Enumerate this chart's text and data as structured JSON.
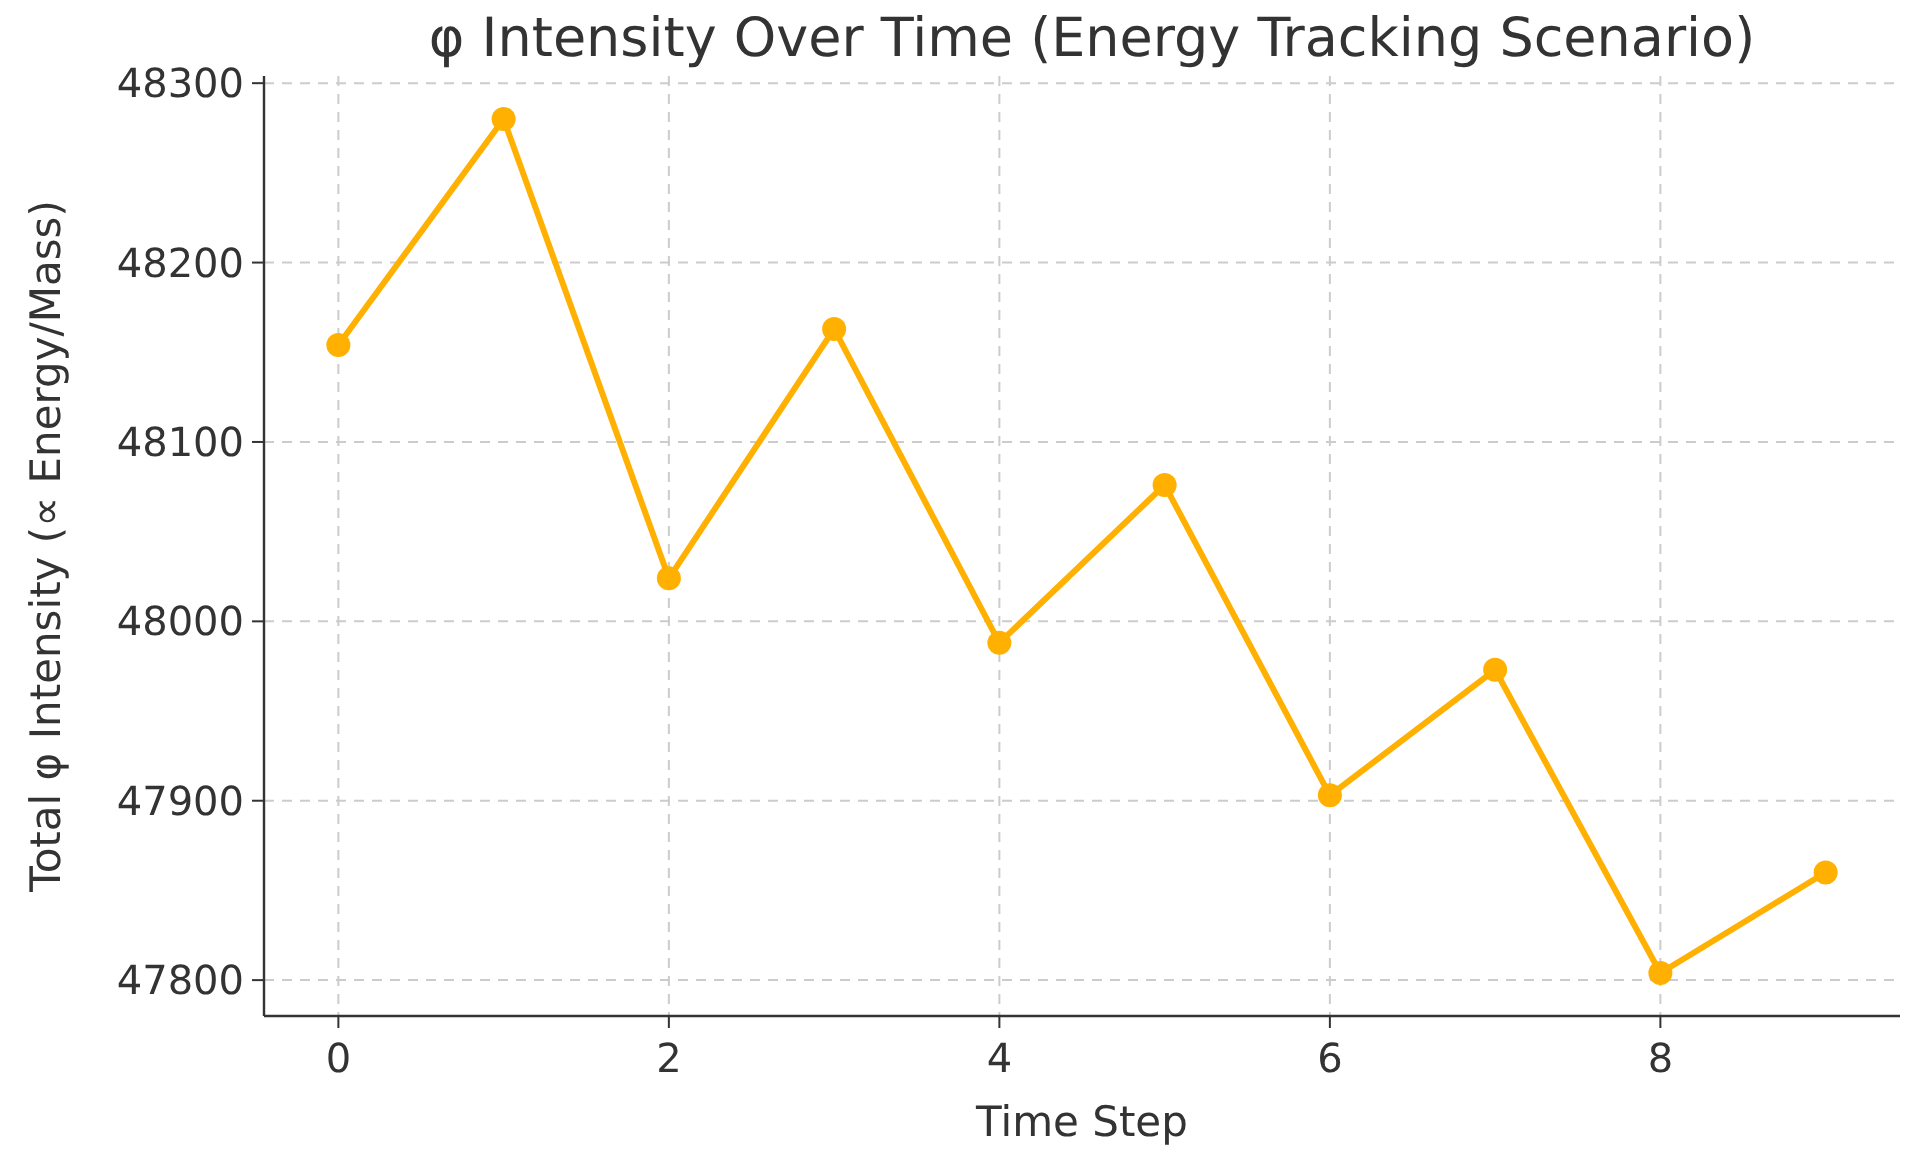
{
  "chart_data": {
    "type": "line",
    "title": "φ Intensity Over Time (Energy Tracking Scenario)",
    "xlabel": "Time Step",
    "ylabel": "Total φ Intensity (∝ Energy/Mass)",
    "x": [
      0,
      1,
      2,
      3,
      4,
      5,
      6,
      7,
      8,
      9
    ],
    "series": [
      {
        "color": "#ffb000",
        "values": [
          48154,
          48280,
          48024,
          48163,
          47988,
          48076,
          47903,
          47973,
          47804,
          47860
        ]
      }
    ],
    "xlim": [
      -0.45,
      9.45
    ],
    "xticks": [
      0,
      2,
      4,
      6,
      8
    ],
    "ylim": [
      47780,
      48304
    ],
    "yticks": [
      47800,
      47900,
      48000,
      48100,
      48200,
      48300
    ],
    "grid": true,
    "marker": "circle",
    "line_style": "solid"
  }
}
